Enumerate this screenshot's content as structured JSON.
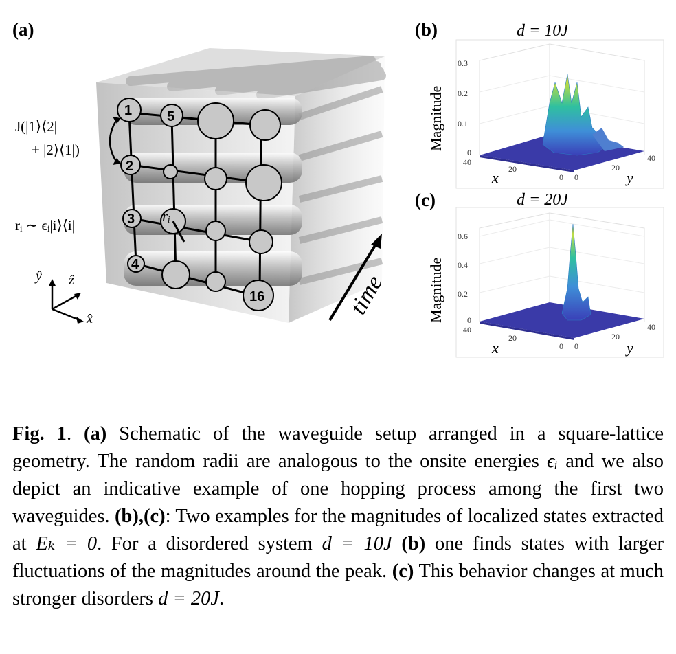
{
  "figure": {
    "panel_a": {
      "label": "(a)",
      "hopping_line1": "J(|1⟩⟨2|",
      "hopping_line2": "+ |2⟩⟨1|)",
      "onsite": "rᵢ ∼ ϵᵢ|i⟩⟨i|",
      "radius_label": "rᵢ",
      "time_label": "time",
      "axis_x": "x̂",
      "axis_y": "ŷ",
      "axis_z": "ẑ",
      "site_numbers": [
        "1",
        "2",
        "3",
        "4",
        "5",
        "16"
      ]
    },
    "panel_b": {
      "label": "(b)",
      "title": "d = 10J",
      "zlabel": "Magnitude",
      "xlabel": "x",
      "ylabel": "y",
      "z_ticks": [
        "0.3",
        "0.2",
        "0.1",
        "0"
      ],
      "x_ticks": [
        "40",
        "20",
        "0"
      ],
      "y_ticks": [
        "0",
        "20",
        "40"
      ]
    },
    "panel_c": {
      "label": "(c)",
      "title": "d = 20J",
      "zlabel": "Magnitude",
      "xlabel": "x",
      "ylabel": "y",
      "z_ticks": [
        "0.6",
        "0.4",
        "0.2",
        "0"
      ],
      "x_ticks": [
        "40",
        "20",
        "0"
      ],
      "y_ticks": [
        "0",
        "20",
        "40"
      ]
    }
  },
  "caption": {
    "fig_label": "Fig. 1",
    "a_label": "(a)",
    "text_a": " Schematic of the waveguide setup arranged in a square-lattice geometry. The random radii are analogous to the onsite energies ",
    "eps": "ϵᵢ",
    "text_a2": " and we also depict an indicative example of one hopping process among the first two waveguides. ",
    "bc_label": "(b),(c)",
    "text_bc": ": Two examples for the magnitudes of localized states extracted at ",
    "ek": "Eₖ = 0",
    "text_bc2": ". For a disordered system ",
    "d10": "d = 10J",
    "b_label": "(b)",
    "text_b": " one finds states with larger fluctuations of the magnitudes around the peak. ",
    "c_label": "(c)",
    "text_c": " This behavior changes at much stronger disorders ",
    "d20": "d = 20J",
    "end": "."
  },
  "colors": {
    "surface_base": "#3a3aa8",
    "peak_low": "#3f8fd8",
    "peak_mid": "#2fc0a0",
    "peak_high": "#f0e020",
    "tube_gray": "#c8c8c8"
  }
}
